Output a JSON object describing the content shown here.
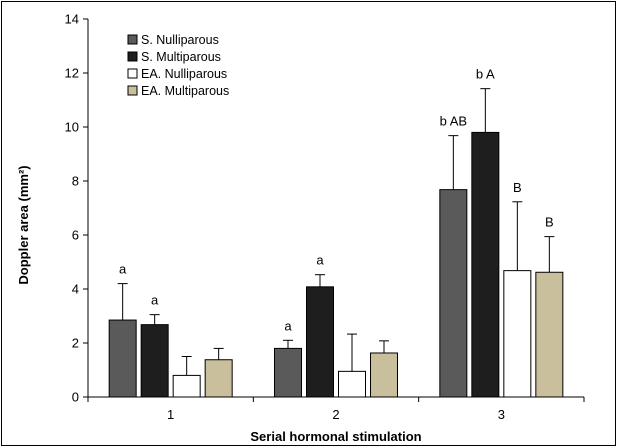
{
  "chart_data": {
    "type": "bar",
    "title": "",
    "xlabel": "Serial hormonal stimulation",
    "ylabel": "Doppler area (mm²)",
    "ylim": [
      0,
      14
    ],
    "yticks": [
      0,
      2,
      4,
      6,
      8,
      10,
      12,
      14
    ],
    "categories": [
      "1",
      "2",
      "3"
    ],
    "legend_position": "top-left",
    "grid": false,
    "series": [
      {
        "name": "S. Nulliparous",
        "color": "#5a5a5a",
        "values": [
          2.85,
          1.8,
          7.68
        ],
        "error": [
          1.35,
          0.3,
          2.0
        ],
        "labels": [
          "a",
          "a",
          "b AB"
        ]
      },
      {
        "name": "S. Multiparous",
        "color": "#1e1e1e",
        "values": [
          2.68,
          4.08,
          9.8
        ],
        "error": [
          0.37,
          0.45,
          1.62
        ],
        "labels": [
          "a",
          "a",
          "b A"
        ]
      },
      {
        "name": "EA. Nulliparous",
        "color": "#ffffff",
        "values": [
          0.8,
          0.95,
          4.68
        ],
        "error": [
          0.7,
          1.38,
          2.55
        ],
        "labels": [
          "",
          "",
          "B"
        ]
      },
      {
        "name": "EA. Multiparous",
        "color": "#c9bf9c",
        "values": [
          1.38,
          1.63,
          4.62
        ],
        "error": [
          0.42,
          0.45,
          1.32
        ],
        "labels": [
          "",
          "",
          "B"
        ]
      }
    ]
  }
}
